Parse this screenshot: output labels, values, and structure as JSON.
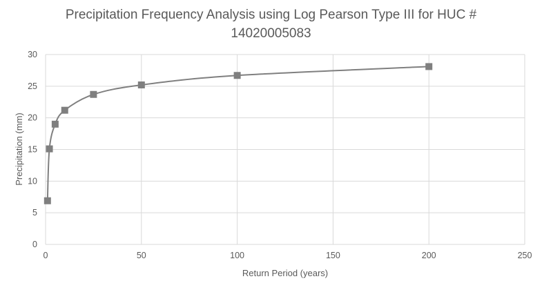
{
  "chart_data": {
    "type": "scatter",
    "title_line1": "Precipitation Frequency Analysis using Log Pearson Type III for HUC #",
    "title_line2": "14020005083",
    "xlabel": "Return Period (years)",
    "ylabel": "Precipitation (mm)",
    "xlim": [
      0,
      250
    ],
    "ylim": [
      0,
      30
    ],
    "x_ticks": [
      0,
      50,
      100,
      150,
      200,
      250
    ],
    "y_ticks": [
      0,
      5,
      10,
      15,
      20,
      25,
      30
    ],
    "grid": true,
    "smooth_line": true,
    "marker": "square",
    "series": [
      {
        "x": [
          1.01,
          2,
          5,
          10,
          25,
          50,
          100,
          200
        ],
        "y": [
          6.9,
          15.1,
          19.0,
          21.2,
          23.7,
          25.2,
          26.7,
          28.1
        ]
      }
    ],
    "colors": {
      "series": "#7f7f7f",
      "grid": "#d9d9d9",
      "text": "#595959"
    }
  }
}
